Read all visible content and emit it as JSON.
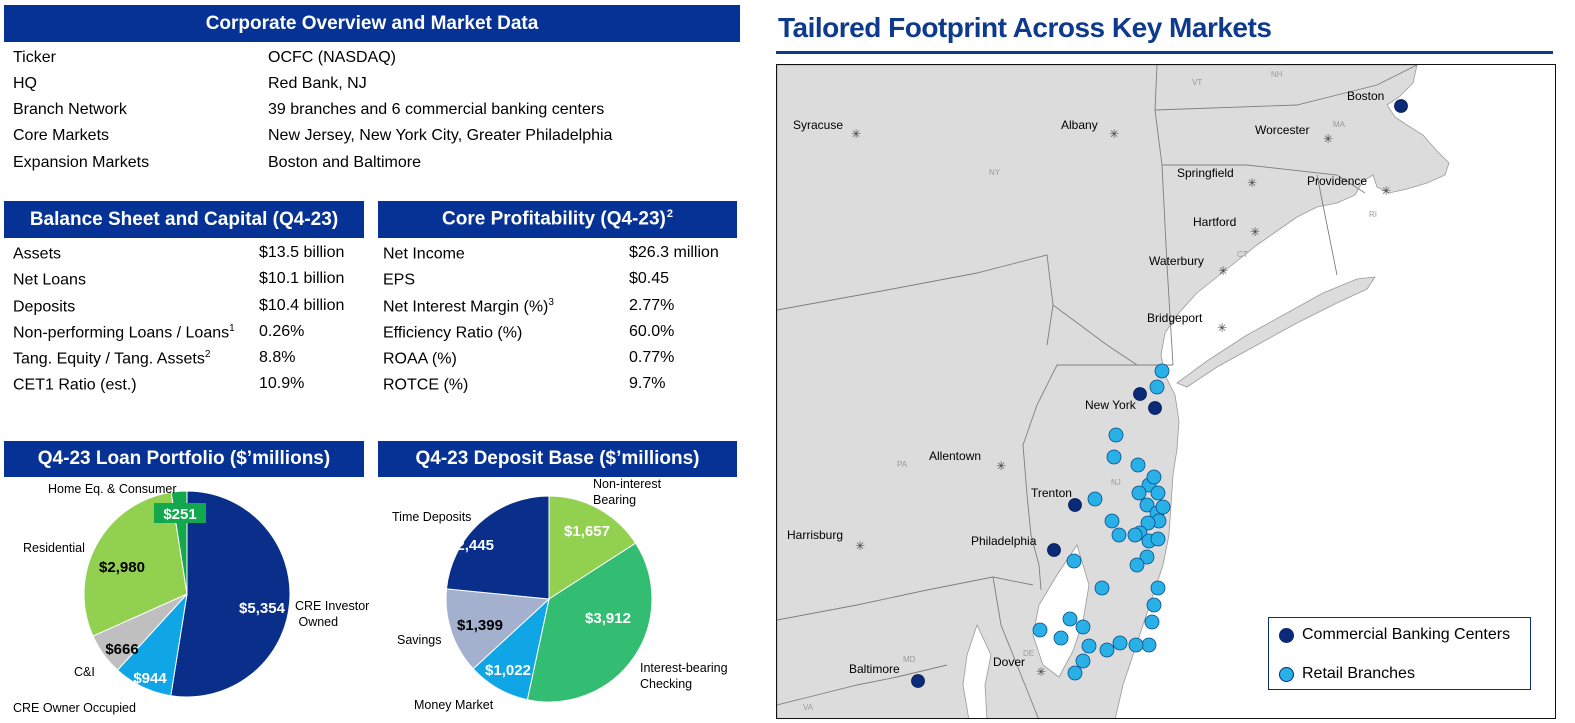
{
  "overview": {
    "title": "Corporate Overview and Market Data",
    "rows": [
      {
        "label": "Ticker",
        "value": "OCFC (NASDAQ)"
      },
      {
        "label": "HQ",
        "value": "Red Bank, NJ"
      },
      {
        "label": "Branch Network",
        "value": "39 branches and 6 commercial banking centers"
      },
      {
        "label": "Core Markets",
        "value": "New Jersey, New York City, Greater Philadelphia"
      },
      {
        "label": "Expansion Markets",
        "value": "Boston and Baltimore"
      }
    ]
  },
  "balance": {
    "title": "Balance Sheet and Capital (Q4-23)",
    "rows": [
      {
        "label": "Assets",
        "sup": "",
        "value": "$13.5 billion"
      },
      {
        "label": "Net Loans",
        "sup": "",
        "value": "$10.1 billion"
      },
      {
        "label": "Deposits",
        "sup": "",
        "value": "$10.4 billion"
      },
      {
        "label": "Non-performing Loans / Loans",
        "sup": "1",
        "value": "0.26%"
      },
      {
        "label": "Tang. Equity / Tang. Assets",
        "sup": "2",
        "value": "8.8%"
      },
      {
        "label": "CET1 Ratio (est.)",
        "sup": "",
        "value": "10.9%"
      }
    ]
  },
  "profitability": {
    "title": "Core Profitability (Q4-23)",
    "title_sup": "2",
    "rows": [
      {
        "label": "Net Income",
        "sup": "",
        "value": "$26.3 million"
      },
      {
        "label": "EPS",
        "sup": "",
        "value": "$0.45"
      },
      {
        "label": "Net Interest Margin (%)",
        "sup": "3",
        "value": "2.77%"
      },
      {
        "label": "Efficiency Ratio (%)",
        "sup": "",
        "value": "60.0%"
      },
      {
        "label": "ROAA (%)",
        "sup": "",
        "value": "0.77%"
      },
      {
        "label": "ROTCE (%)",
        "sup": "",
        "value": "9.7%"
      }
    ]
  },
  "loan_portfolio": {
    "title": "Q4-23 Loan Portfolio ($’millions)",
    "slices": [
      {
        "value": 5354,
        "value_label": "$5,354",
        "name": "CRE Investor Owned",
        "color": "#0a2f8a",
        "text_color": "#ffffff"
      },
      {
        "value": 944,
        "value_label": "$944",
        "name": "CRE Owner Occupied",
        "color": "#10a6e6",
        "text_color": "#ffffff"
      },
      {
        "value": 666,
        "value_label": "$666",
        "name": "C&I",
        "color": "#bfbfbf",
        "text_color": "#000000"
      },
      {
        "value": 2980,
        "value_label": "$2,980",
        "name": "Residential",
        "color": "#92d050",
        "text_color": "#000000"
      },
      {
        "value": 251,
        "value_label": "$251",
        "name": "Home Eq. & Consumer",
        "color": "#14a84e",
        "text_color": "#ffffff"
      }
    ]
  },
  "deposit_base": {
    "title": "Q4-23 Deposit Base ($’millions)",
    "slices": [
      {
        "value": 1657,
        "value_label": "$1,657",
        "name": "Non-interest Bearing",
        "color": "#92d050",
        "text_color": "#ffffff"
      },
      {
        "value": 3912,
        "value_label": "$3,912",
        "name": "Interest-bearing Checking",
        "color": "#33bd72",
        "text_color": "#ffffff"
      },
      {
        "value": 1022,
        "value_label": "$1,022",
        "name": "Money Market",
        "color": "#10a6e6",
        "text_color": "#ffffff"
      },
      {
        "value": 1399,
        "value_label": "$1,399",
        "name": "Savings",
        "color": "#a3b1cf",
        "text_color": "#000000"
      },
      {
        "value": 2445,
        "value_label": "$2,445",
        "name": "Time Deposits",
        "color": "#0a2f8a",
        "text_color": "#ffffff"
      }
    ]
  },
  "map": {
    "title": "Tailored Footprint Across Key Markets",
    "cities": [
      "Syracuse",
      "Albany",
      "Boston",
      "Worcester",
      "Springfield",
      "Providence",
      "Hartford",
      "Waterbury",
      "Bridgeport",
      "New York",
      "Allentown",
      "Trenton",
      "Harrisburg",
      "Philadelphia",
      "Baltimore",
      "Dover"
    ],
    "states": [
      "VT",
      "NH",
      "MA",
      "NY",
      "RI",
      "CT",
      "PA",
      "NJ",
      "MD",
      "DE",
      "VA"
    ],
    "legend": {
      "commercial": "Commercial Banking Centers",
      "retail": "Retail Branches"
    },
    "colors": {
      "commercial": "#0b2a78",
      "retail": "#29b0e6",
      "land": "#dcdcdc",
      "water": "#ffffff"
    }
  }
}
